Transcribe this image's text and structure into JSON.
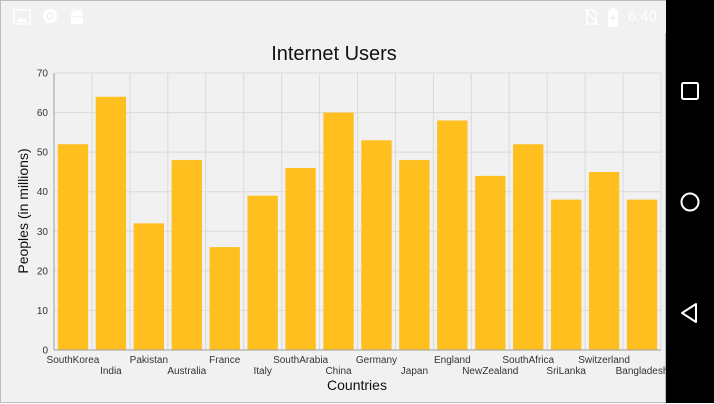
{
  "status_bar": {
    "time": "6:40",
    "left_icons": [
      "image-icon",
      "chat-sync-icon",
      "android-icon"
    ],
    "right_icons": [
      "no-sim-icon",
      "battery-charging-icon"
    ]
  },
  "nav_bar": {
    "buttons": [
      "recents-button",
      "home-button",
      "back-button"
    ]
  },
  "colors": {
    "bar": "#FFBF1F",
    "background": "#F1F1F1",
    "grid": "#DADADA"
  },
  "chart_data": {
    "type": "bar",
    "title": "Internet Users",
    "xlabel": "Countries",
    "ylabel": "Peoples (in millions)",
    "categories": [
      "SouthKorea",
      "India",
      "Pakistan",
      "Australia",
      "France",
      "Italy",
      "SouthArabia",
      "China",
      "Germany",
      "Japan",
      "England",
      "NewZealand",
      "SouthAfrica",
      "SriLanka",
      "Switzerland",
      "Bangladesh"
    ],
    "values": [
      52,
      64,
      32,
      48,
      26,
      39,
      46,
      60,
      53,
      48,
      58,
      44,
      52,
      38,
      45,
      38
    ],
    "ylim": [
      0,
      70
    ],
    "yticks": [
      0,
      10,
      20,
      30,
      40,
      50,
      60,
      70
    ],
    "grid": true
  }
}
